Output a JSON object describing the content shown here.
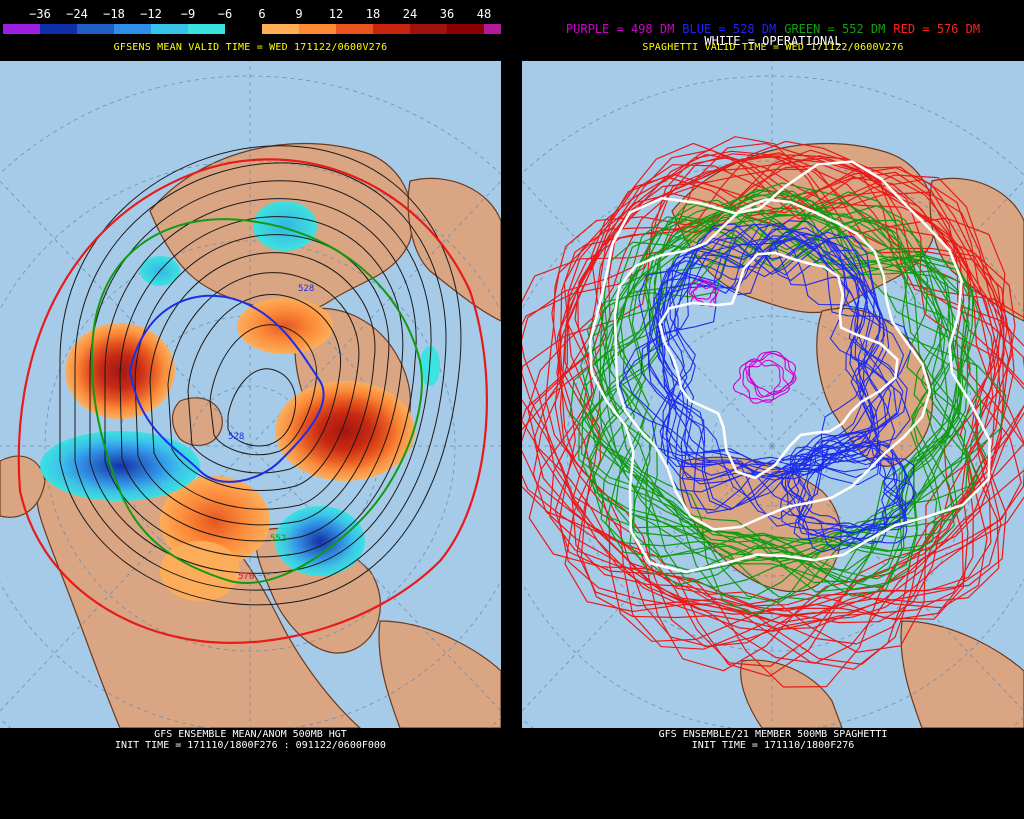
{
  "left": {
    "legend": {
      "labels": [
        "−36",
        "−24",
        "−18",
        "−12",
        "−9",
        "−6",
        "6",
        "9",
        "12",
        "18",
        "24",
        "36",
        "48"
      ],
      "colors": [
        "#9c1fe0",
        "#0f2fa8",
        "#1f5fc4",
        "#2f8ee6",
        "#38c4ea",
        "#3ae3e2",
        "#000000",
        "#ffae58",
        "#ff8a36",
        "#e8551c",
        "#c8250f",
        "#a2120c",
        "#8a0000",
        "#b01a9c"
      ]
    },
    "subtitle": "GFSENS MEAN VALID TIME = WED 171122/0600V276",
    "footer_line1": "GFS ENSEMBLE MEAN/ANOM 500MB HGT",
    "footer_line2": "INIT TIME = 171110/1800F276 : 091122/0600F000",
    "contour_labels": [
      "528",
      "528",
      "576",
      "552"
    ]
  },
  "right": {
    "legend_items": [
      {
        "text": "PURPLE = 498 DM",
        "color": "#d000d0"
      },
      {
        "text": "BLUE = 528 DM",
        "color": "#2020ff"
      },
      {
        "text": "GREEN = 552 DM",
        "color": "#10a010"
      },
      {
        "text": "RED = 576 DM",
        "color": "#ff2020"
      }
    ],
    "white_line": "WHITE = OPERATIONAL",
    "subtitle": "SPAGHETTI VALID TIME = WED 171122/0600V276",
    "footer_line1": "GFS ENSEMBLE/21 MEMBER 500MB SPAGHETTI",
    "footer_line2": "INIT TIME = 171110/1800F276"
  },
  "colors": {
    "ocean": "#a6cbe9",
    "land": "#d9a583",
    "border": "#6b3a1e"
  }
}
